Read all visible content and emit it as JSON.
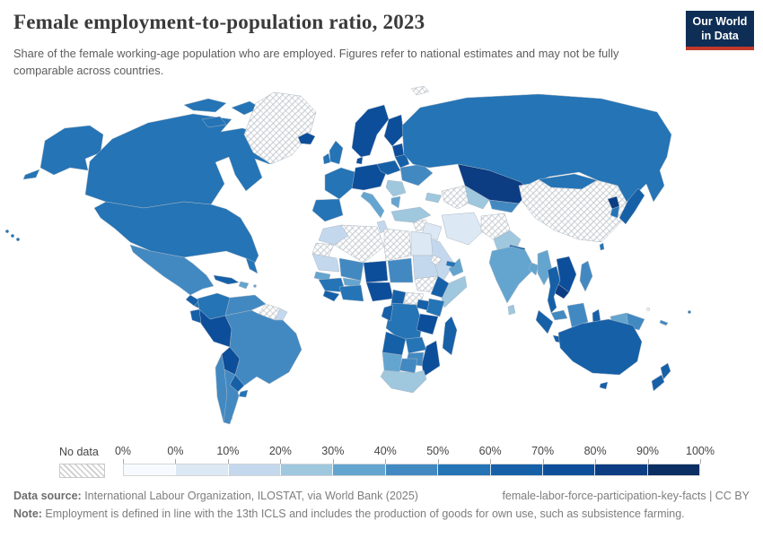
{
  "header": {
    "title": "Female employment-to-population ratio, 2023",
    "subtitle": "Share of the female working-age population who are employed. Figures refer to national estimates and may not be fully comparable across countries.",
    "logo": {
      "line1": "Our World",
      "line2": "in Data",
      "bg": "#0f2e55",
      "accent": "#c0392b"
    }
  },
  "legend": {
    "no_data_label": "No data",
    "tick_labels": [
      "0%",
      "0%",
      "10%",
      "20%",
      "30%",
      "40%",
      "50%",
      "60%",
      "70%",
      "80%",
      "90%",
      "100%"
    ],
    "colors": [
      "#f7fbff",
      "#dde8f5",
      "#c4d8ed",
      "#9fc7de",
      "#64a5d0",
      "#4289c2",
      "#2474b6",
      "#1660a8",
      "#0d4e9b",
      "#0c3c82",
      "#0b2e63"
    ]
  },
  "chart_data": {
    "type": "choropleth",
    "title": "Female employment-to-population ratio, 2023",
    "unit": "%",
    "year": 2023,
    "legend_bins": [
      {
        "label": "No data",
        "color": "nodata"
      },
      {
        "label": "0%",
        "color": "#f7fbff"
      },
      {
        "label": "0-10%",
        "color": "#dde8f5"
      },
      {
        "label": "10-20%",
        "color": "#c4d8ed"
      },
      {
        "label": "20-30%",
        "color": "#9fc7de"
      },
      {
        "label": "30-40%",
        "color": "#64a5d0"
      },
      {
        "label": "40-50%",
        "color": "#4289c2"
      },
      {
        "label": "50-60%",
        "color": "#2474b6"
      },
      {
        "label": "60-70%",
        "color": "#1660a8"
      },
      {
        "label": "70-80%",
        "color": "#0d4e9b"
      },
      {
        "label": "80-90%",
        "color": "#0c3c82"
      },
      {
        "label": "90-100%",
        "color": "#0b2e63"
      }
    ],
    "regions": [
      {
        "id": "usa",
        "name": "United States",
        "color": "#2474b6",
        "range": "50-60%"
      },
      {
        "id": "canada",
        "name": "Canada",
        "color": "#2474b6",
        "range": "50-60%"
      },
      {
        "id": "greenland",
        "name": "Greenland",
        "color": "nodata",
        "range": "No data"
      },
      {
        "id": "iceland",
        "name": "Iceland",
        "color": "#0d4e9b",
        "range": "70-80%"
      },
      {
        "id": "svalbard",
        "name": "Svalbard",
        "color": "nodata",
        "range": "No data"
      },
      {
        "id": "mexico",
        "name": "Mexico",
        "color": "#4289c2",
        "range": "40-50%"
      },
      {
        "id": "guatemala",
        "name": "Guatemala",
        "color": "#1660a8",
        "range": "60-70%"
      },
      {
        "id": "central-america",
        "name": "Central America",
        "color": "#2474b6",
        "range": "50-60%"
      },
      {
        "id": "cuba",
        "name": "Cuba",
        "color": "#1660a8",
        "range": "60-70%"
      },
      {
        "id": "hispaniola",
        "name": "Hispaniola",
        "color": "#64a5d0",
        "range": "30-40%"
      },
      {
        "id": "puerto-rico",
        "name": "Puerto Rico",
        "color": "#64a5d0",
        "range": "30-40%"
      },
      {
        "id": "colombia",
        "name": "Colombia",
        "color": "#2474b6",
        "range": "50-60%"
      },
      {
        "id": "venezuela",
        "name": "Venezuela",
        "color": "#4289c2",
        "range": "40-50%"
      },
      {
        "id": "guyana-suriname",
        "name": "Guyana and Suriname",
        "color": "nodata",
        "range": "No data"
      },
      {
        "id": "french-guiana",
        "name": "French Guiana",
        "color": "#c4d8ed",
        "range": "10-20%"
      },
      {
        "id": "ecuador",
        "name": "Ecuador",
        "color": "#1660a8",
        "range": "60-70%"
      },
      {
        "id": "peru",
        "name": "Peru",
        "color": "#0d4e9b",
        "range": "70-80%"
      },
      {
        "id": "brazil",
        "name": "Brazil",
        "color": "#4289c2",
        "range": "40-50%"
      },
      {
        "id": "bolivia",
        "name": "Bolivia",
        "color": "#0d4e9b",
        "range": "70-80%"
      },
      {
        "id": "paraguay",
        "name": "Paraguay",
        "color": "#1660a8",
        "range": "60-70%"
      },
      {
        "id": "uruguay",
        "name": "Uruguay",
        "color": "#2474b6",
        "range": "50-60%"
      },
      {
        "id": "chile",
        "name": "Chile",
        "color": "#4289c2",
        "range": "40-50%"
      },
      {
        "id": "argentina",
        "name": "Argentina",
        "color": "#4289c2",
        "range": "40-50%"
      },
      {
        "id": "uk",
        "name": "United Kingdom",
        "color": "#2474b6",
        "range": "50-60%"
      },
      {
        "id": "ireland",
        "name": "Ireland",
        "color": "#2474b6",
        "range": "50-60%"
      },
      {
        "id": "france",
        "name": "France",
        "color": "#2474b6",
        "range": "50-60%"
      },
      {
        "id": "iberia",
        "name": "Spain and Portugal",
        "color": "#2474b6",
        "range": "50-60%"
      },
      {
        "id": "norway-sweden",
        "name": "Norway and Sweden",
        "color": "#0d4e9b",
        "range": "70-80%"
      },
      {
        "id": "finland",
        "name": "Finland",
        "color": "#0d4e9b",
        "range": "70-80%"
      },
      {
        "id": "baltics",
        "name": "Baltic states",
        "color": "#0d4e9b",
        "range": "70-80%"
      },
      {
        "id": "denmark",
        "name": "Denmark",
        "color": "#0d4e9b",
        "range": "70-80%"
      },
      {
        "id": "germany-central",
        "name": "Germany and Central Europe",
        "color": "#0d4e9b",
        "range": "70-80%"
      },
      {
        "id": "poland",
        "name": "Poland",
        "color": "#1660a8",
        "range": "60-70%"
      },
      {
        "id": "belarus",
        "name": "Belarus",
        "color": "#1660a8",
        "range": "60-70%"
      },
      {
        "id": "ukraine",
        "name": "Ukraine",
        "color": "#4289c2",
        "range": "40-50%"
      },
      {
        "id": "romania-balkans",
        "name": "Romania and Balkans",
        "color": "#9fc7de",
        "range": "20-30%"
      },
      {
        "id": "greece",
        "name": "Greece",
        "color": "#64a5d0",
        "range": "30-40%"
      },
      {
        "id": "italy",
        "name": "Italy",
        "color": "#64a5d0",
        "range": "30-40%"
      },
      {
        "id": "russia",
        "name": "Russia",
        "color": "#2474b6",
        "range": "50-60%"
      },
      {
        "id": "kazakhstan",
        "name": "Kazakhstan",
        "color": "#0c3c82",
        "range": "80-90%"
      },
      {
        "id": "turkmenistan",
        "name": "Turkmenistan",
        "color": "nodata",
        "range": "No data"
      },
      {
        "id": "uzbekistan",
        "name": "Uzbekistan",
        "color": "#9fc7de",
        "range": "20-30%"
      },
      {
        "id": "kyrgyz-tajik",
        "name": "Kyrgyzstan and Tajikistan",
        "color": "#4289c2",
        "range": "40-50%"
      },
      {
        "id": "caucasus",
        "name": "Caucasus",
        "color": "#9fc7de",
        "range": "20-30%"
      },
      {
        "id": "turkey",
        "name": "Turkey",
        "color": "#9fc7de",
        "range": "20-30%"
      },
      {
        "id": "syria",
        "name": "Syria",
        "color": "nodata",
        "range": "No data"
      },
      {
        "id": "iraq",
        "name": "Iraq",
        "color": "#dde8f5",
        "range": "0-10%"
      },
      {
        "id": "iran",
        "name": "Iran",
        "color": "#dde8f5",
        "range": "0-10%"
      },
      {
        "id": "afghanistan",
        "name": "Afghanistan",
        "color": "nodata",
        "range": "No data"
      },
      {
        "id": "pakistan",
        "name": "Pakistan",
        "color": "#9fc7de",
        "range": "20-30%"
      },
      {
        "id": "saudi",
        "name": "Saudi Arabia",
        "color": "#c4d8ed",
        "range": "10-20%"
      },
      {
        "id": "yemen",
        "name": "Yemen",
        "color": "nodata",
        "range": "No data"
      },
      {
        "id": "oman",
        "name": "Oman",
        "color": "#64a5d0",
        "range": "30-40%"
      },
      {
        "id": "uae",
        "name": "United Arab Emirates",
        "color": "#2474b6",
        "range": "50-60%"
      },
      {
        "id": "india",
        "name": "India",
        "color": "#64a5d0",
        "range": "30-40%"
      },
      {
        "id": "nepal",
        "name": "Nepal",
        "color": "#1660a8",
        "range": "60-70%"
      },
      {
        "id": "bangladesh",
        "name": "Bangladesh",
        "color": "#64a5d0",
        "range": "30-40%"
      },
      {
        "id": "sri-lanka",
        "name": "Sri Lanka",
        "color": "#9fc7de",
        "range": "20-30%"
      },
      {
        "id": "myanmar",
        "name": "Myanmar",
        "color": "#64a5d0",
        "range": "30-40%"
      },
      {
        "id": "thailand",
        "name": "Thailand",
        "color": "#1660a8",
        "range": "60-70%"
      },
      {
        "id": "laos-vietnam",
        "name": "Laos and Vietnam",
        "color": "#0d4e9b",
        "range": "70-80%"
      },
      {
        "id": "cambodia",
        "name": "Cambodia",
        "color": "#0c3c82",
        "range": "80-90%"
      },
      {
        "id": "malaysia",
        "name": "Malaysia",
        "color": "#4289c2",
        "range": "40-50%"
      },
      {
        "id": "sumatra",
        "name": "Indonesia (Sumatra)",
        "color": "#1660a8",
        "range": "60-70%"
      },
      {
        "id": "java",
        "name": "Indonesia (Java)",
        "color": "#1660a8",
        "range": "60-70%"
      },
      {
        "id": "borneo",
        "name": "Borneo",
        "color": "#4289c2",
        "range": "40-50%"
      },
      {
        "id": "sulawesi",
        "name": "Indonesia (Sulawesi)",
        "color": "#1660a8",
        "range": "60-70%"
      },
      {
        "id": "west-papua",
        "name": "Indonesia (Papua)",
        "color": "#64a5d0",
        "range": "30-40%"
      },
      {
        "id": "png",
        "name": "Papua New Guinea",
        "color": "#4289c2",
        "range": "40-50%"
      },
      {
        "id": "philippines",
        "name": "Philippines",
        "color": "#4289c2",
        "range": "40-50%"
      },
      {
        "id": "china",
        "name": "China",
        "color": "nodata",
        "range": "No data"
      },
      {
        "id": "mongolia",
        "name": "Mongolia",
        "color": "#2474b6",
        "range": "50-60%"
      },
      {
        "id": "japan",
        "name": "Japan",
        "color": "#1660a8",
        "range": "60-70%"
      },
      {
        "id": "south-korea",
        "name": "South Korea",
        "color": "#2474b6",
        "range": "50-60%"
      },
      {
        "id": "north-korea",
        "name": "North Korea",
        "color": "#0c3c82",
        "range": "80-90%"
      },
      {
        "id": "taiwan",
        "name": "Taiwan",
        "color": "#2474b6",
        "range": "50-60%"
      },
      {
        "id": "australia",
        "name": "Australia",
        "color": "#1660a8",
        "range": "60-70%"
      },
      {
        "id": "new-zealand",
        "name": "New Zealand",
        "color": "#1660a8",
        "range": "60-70%"
      },
      {
        "id": "fiji",
        "name": "Fiji",
        "color": "#2474b6",
        "range": "50-60%"
      },
      {
        "id": "new-caledonia",
        "name": "New Caledonia",
        "color": "#4289c2",
        "range": "40-50%"
      },
      {
        "id": "solomon",
        "name": "Solomon Islands",
        "color": "nodata",
        "range": "No data"
      },
      {
        "id": "hawaii",
        "name": "Hawaii (US)",
        "color": "#2474b6",
        "range": "50-60%"
      },
      {
        "id": "morocco",
        "name": "Morocco",
        "color": "#c4d8ed",
        "range": "10-20%"
      },
      {
        "id": "algeria",
        "name": "Algeria",
        "color": "nodata",
        "range": "No data"
      },
      {
        "id": "tunisia",
        "name": "Tunisia",
        "color": "#c4d8ed",
        "range": "10-20%"
      },
      {
        "id": "libya",
        "name": "Libya",
        "color": "nodata",
        "range": "No data"
      },
      {
        "id": "egypt",
        "name": "Egypt",
        "color": "#dde8f5",
        "range": "0-10%"
      },
      {
        "id": "western-sahara",
        "name": "Western Sahara",
        "color": "nodata",
        "range": "No data"
      },
      {
        "id": "mauritania",
        "name": "Mauritania",
        "color": "#c4d8ed",
        "range": "10-20%"
      },
      {
        "id": "mali",
        "name": "Mali",
        "color": "#4289c2",
        "range": "40-50%"
      },
      {
        "id": "niger",
        "name": "Niger",
        "color": "#0d4e9b",
        "range": "70-80%"
      },
      {
        "id": "chad",
        "name": "Chad",
        "color": "#4289c2",
        "range": "40-50%"
      },
      {
        "id": "sudan",
        "name": "Sudan",
        "color": "#c4d8ed",
        "range": "10-20%"
      },
      {
        "id": "south-sudan",
        "name": "South Sudan",
        "color": "nodata",
        "range": "No data"
      },
      {
        "id": "eritrea",
        "name": "Eritrea",
        "color": "nodata",
        "range": "No data"
      },
      {
        "id": "ethiopia",
        "name": "Ethiopia",
        "color": "#1660a8",
        "range": "60-70%"
      },
      {
        "id": "somalia",
        "name": "Somalia",
        "color": "#9fc7de",
        "range": "20-30%"
      },
      {
        "id": "senegal",
        "name": "Senegal",
        "color": "#64a5d0",
        "range": "30-40%"
      },
      {
        "id": "guinea",
        "name": "Guinea",
        "color": "#2474b6",
        "range": "50-60%"
      },
      {
        "id": "burkina",
        "name": "Burkina Faso",
        "color": "#64a5d0",
        "range": "30-40%"
      },
      {
        "id": "sierra-liberia",
        "name": "Sierra Leone and Liberia",
        "color": "#1660a8",
        "range": "60-70%"
      },
      {
        "id": "cote-ghana",
        "name": "Côte d'Ivoire and Ghana",
        "color": "#2474b6",
        "range": "50-60%"
      },
      {
        "id": "nigeria",
        "name": "Nigeria",
        "color": "#0d4e9b",
        "range": "70-80%"
      },
      {
        "id": "cameroon",
        "name": "Cameroon",
        "color": "#1660a8",
        "range": "60-70%"
      },
      {
        "id": "car",
        "name": "Central African Republic",
        "color": "nodata",
        "range": "No data"
      },
      {
        "id": "gabon-congo",
        "name": "Gabon and Congo",
        "color": "#1660a8",
        "range": "60-70%"
      },
      {
        "id": "drc",
        "name": "Democratic Republic of Congo",
        "color": "#2474b6",
        "range": "50-60%"
      },
      {
        "id": "uganda",
        "name": "Uganda",
        "color": "#1660a8",
        "range": "60-70%"
      },
      {
        "id": "kenya",
        "name": "Kenya",
        "color": "#2474b6",
        "range": "50-60%"
      },
      {
        "id": "tanzania",
        "name": "Tanzania",
        "color": "#0d4e9b",
        "range": "70-80%"
      },
      {
        "id": "angola",
        "name": "Angola",
        "color": "#1660a8",
        "range": "60-70%"
      },
      {
        "id": "zambia",
        "name": "Zambia",
        "color": "#2474b6",
        "range": "50-60%"
      },
      {
        "id": "mozambique",
        "name": "Mozambique",
        "color": "#0d4e9b",
        "range": "70-80%"
      },
      {
        "id": "zimbabwe",
        "name": "Zimbabwe",
        "color": "#4289c2",
        "range": "40-50%"
      },
      {
        "id": "namibia",
        "name": "Namibia",
        "color": "#64a5d0",
        "range": "30-40%"
      },
      {
        "id": "botswana",
        "name": "Botswana",
        "color": "#4289c2",
        "range": "40-50%"
      },
      {
        "id": "south-africa",
        "name": "South Africa",
        "color": "#9fc7de",
        "range": "20-30%"
      },
      {
        "id": "madagascar",
        "name": "Madagascar",
        "color": "#1660a8",
        "range": "60-70%"
      }
    ]
  },
  "footer": {
    "data_source_label": "Data source:",
    "data_source": " International Labour Organization, ILOSTAT, via World Bank (2025)",
    "slug_cc": "female-labor-force-participation-key-facts | CC BY",
    "note_label": "Note:",
    "note": " Employment is defined in line with the 13th ICLS and includes the production of goods for own use, such as subsistence farming."
  }
}
